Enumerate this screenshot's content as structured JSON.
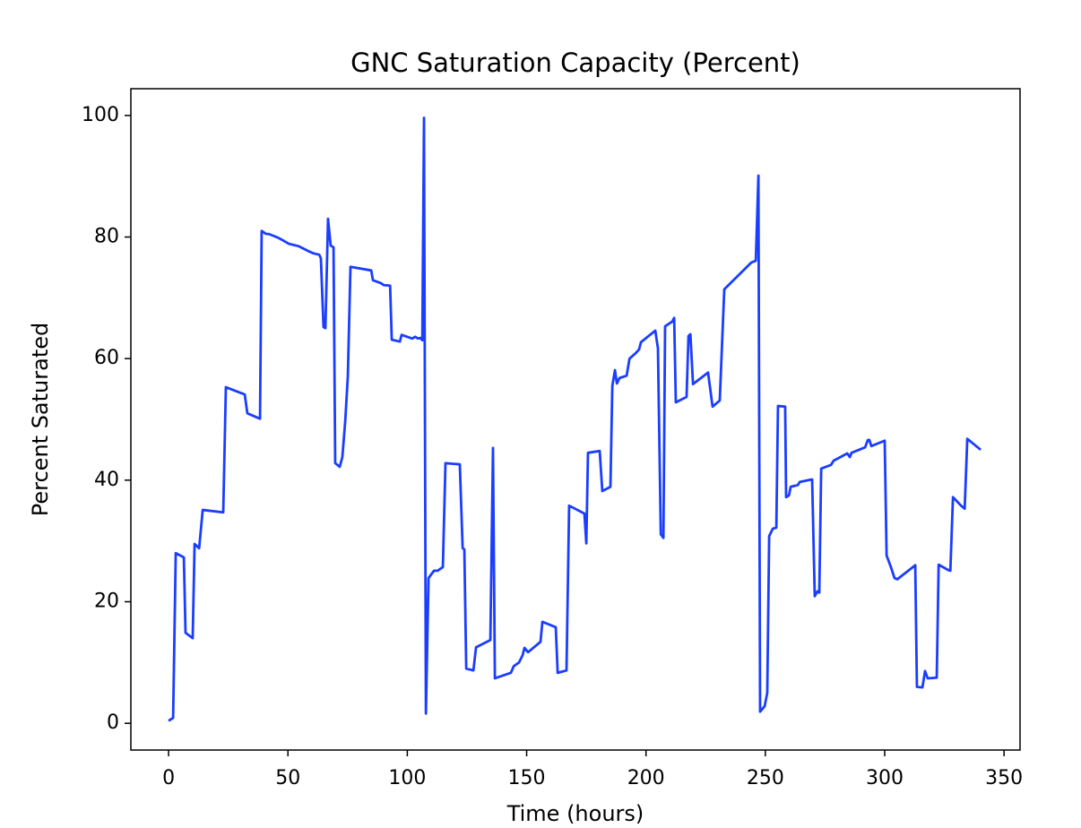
{
  "chart_data": {
    "type": "line",
    "title": "GNC Saturation Capacity (Percent)",
    "x_label": "Time (hours)",
    "y_label": "Percent Saturated",
    "xlim": [
      -15.8,
      356.7
    ],
    "ylim": [
      -4.4,
      104.4
    ],
    "xticks": [
      0,
      50,
      100,
      150,
      200,
      250,
      300,
      350
    ],
    "yticks": [
      0,
      20,
      40,
      60,
      80,
      100
    ],
    "grid": false,
    "x": [
      0,
      1.9,
      3,
      6.4,
      7.1,
      10.1,
      10.9,
      12.8,
      14.3,
      22.9,
      24,
      31.9,
      33,
      38.3,
      39,
      40.9,
      42,
      45.8,
      47.7,
      50.3,
      54.4,
      59,
      60.8,
      63.1,
      63.8,
      64.9,
      65.7,
      66.8,
      67.9,
      69.1,
      69.8,
      71.7,
      72.8,
      74,
      75.1,
      76.2,
      84.9,
      85.6,
      89,
      90.1,
      92.8,
      93.5,
      96.9,
      97.6,
      102.1,
      103.3,
      104.4,
      105.5,
      106.3,
      107,
      107.8,
      108.9,
      111.2,
      112.7,
      114.9,
      116,
      122,
      123.2,
      123.9,
      124.7,
      127.7,
      128.8,
      134.8,
      135.9,
      136.7,
      143.4,
      144.6,
      146.8,
      148.3,
      149.1,
      150.6,
      155.8,
      156.6,
      162.2,
      163,
      166.7,
      167.8,
      174.2,
      175,
      175.7,
      180.6,
      181.7,
      185.1,
      185.9,
      187,
      187.8,
      188.9,
      191.9,
      193.1,
      195.7,
      197.1,
      197.9,
      203.9,
      205,
      206.2,
      207.3,
      208,
      211,
      211.8,
      212.5,
      217,
      217.8,
      218.6,
      219.7,
      226,
      227.9,
      230.9,
      232.8,
      244.1,
      246,
      247.1,
      247.8,
      249.7,
      250.8,
      251.6,
      253.1,
      254.6,
      255.3,
      258.3,
      258.7,
      259.9,
      260.6,
      263.6,
      264.4,
      269.2,
      269.6,
      270.7,
      271.8,
      272.6,
      273.4,
      277.5,
      278.6,
      284.3,
      285.4,
      286.1,
      291.8,
      292.9,
      293.6,
      294.4,
      300,
      300.8,
      302.6,
      304.1,
      305.3,
      312.8,
      313.5,
      315.8,
      316.9,
      318,
      321.8,
      322.6,
      326.7,
      327.5,
      328.6,
      332,
      333.5,
      334.6,
      340.2
    ],
    "series": [
      {
        "color": "#1a3dff",
        "values": [
          0.4,
          0.9,
          28,
          27.3,
          14.9,
          14,
          29.5,
          28.8,
          35.1,
          34.7,
          55.3,
          54.1,
          51,
          50.1,
          81,
          80.5,
          80.5,
          79.9,
          79.5,
          78.9,
          78.5,
          77.6,
          77.3,
          77.1,
          76.5,
          65.2,
          65,
          83,
          78.6,
          78.3,
          42.8,
          42.2,
          43.8,
          49.7,
          57.1,
          75.1,
          74.5,
          72.9,
          72.4,
          72.1,
          72,
          63.1,
          62.8,
          63.9,
          63.3,
          63.6,
          63.3,
          63.4,
          63,
          99.6,
          1.6,
          23.9,
          25.1,
          25.1,
          25.7,
          42.8,
          42.6,
          28.8,
          28.6,
          9,
          8.7,
          12.5,
          13.7,
          45.3,
          7.4,
          8.3,
          9.4,
          10,
          11.2,
          12.4,
          11.7,
          13.4,
          16.7,
          15.8,
          8.3,
          8.7,
          35.8,
          34.5,
          29.6,
          44.5,
          44.8,
          38.2,
          38.9,
          55.5,
          58.1,
          55.9,
          56.8,
          57.2,
          60,
          60.9,
          61.5,
          62.7,
          64.6,
          61.7,
          31.1,
          30.5,
          65.3,
          66.1,
          66.7,
          52.8,
          53.7,
          63.7,
          64,
          55.8,
          57.7,
          52.1,
          53.1,
          71.4,
          75.8,
          76.1,
          90.1,
          1.9,
          2.8,
          5,
          30.8,
          32,
          32.2,
          52.2,
          52.1,
          37.2,
          37.5,
          38.9,
          39.2,
          39.7,
          40.1,
          40.1,
          20.9,
          21.7,
          21.5,
          41.9,
          42.5,
          43.2,
          44.4,
          43.8,
          44.5,
          45.4,
          46.6,
          46.6,
          45.6,
          46.5,
          27.6,
          25.7,
          23.9,
          23.7,
          26,
          6,
          5.9,
          8.6,
          7.4,
          7.5,
          26.1,
          25.2,
          25.1,
          37.2,
          35.8,
          35.3,
          46.8,
          45
        ]
      }
    ]
  }
}
